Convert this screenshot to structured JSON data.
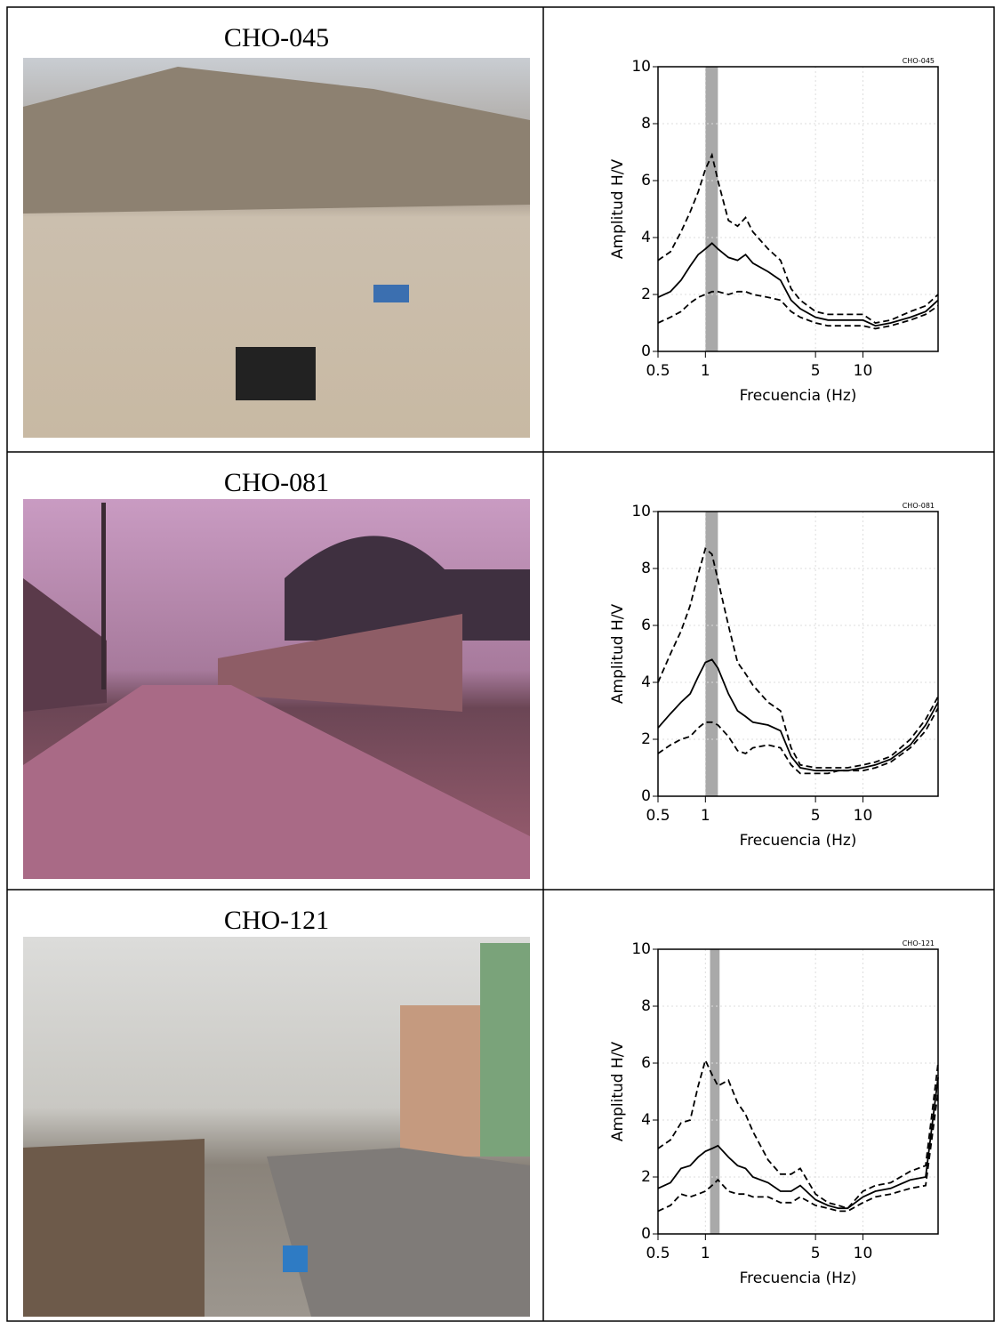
{
  "rows": [
    {
      "caption": "CHO-045"
    },
    {
      "caption": "CHO-081"
    },
    {
      "caption": "CHO-121"
    }
  ],
  "chart_data": [
    {
      "type": "line",
      "title": "CHO-045",
      "xlabel": "Frecuencia (Hz)",
      "ylabel": "Amplitud H/V",
      "xscale": "log",
      "xlim": [
        0.5,
        30
      ],
      "xticks": [
        0.5,
        1,
        5,
        10
      ],
      "ylim": [
        0,
        10
      ],
      "yticks": [
        0,
        2,
        4,
        6,
        8,
        10
      ],
      "grid": true,
      "highlight": [
        1.0,
        1.2
      ],
      "highlight_color": "#a9a9a9",
      "x": [
        0.5,
        0.6,
        0.7,
        0.8,
        0.9,
        1.0,
        1.1,
        1.2,
        1.4,
        1.6,
        1.8,
        2,
        2.5,
        3,
        3.5,
        4,
        5,
        6,
        7,
        8,
        10,
        12,
        15,
        20,
        25,
        30
      ],
      "series": [
        {
          "color": "#000000",
          "style": "solid",
          "values": [
            1.9,
            2.1,
            2.5,
            3.0,
            3.4,
            3.6,
            3.8,
            3.6,
            3.3,
            3.2,
            3.4,
            3.1,
            2.8,
            2.5,
            1.8,
            1.5,
            1.2,
            1.1,
            1.1,
            1.1,
            1.1,
            0.9,
            1.0,
            1.2,
            1.4,
            1.8
          ]
        },
        {
          "color": "#000000",
          "style": "dashed",
          "values": [
            3.2,
            3.5,
            4.2,
            4.9,
            5.6,
            6.4,
            6.9,
            6.0,
            4.6,
            4.4,
            4.7,
            4.2,
            3.6,
            3.2,
            2.2,
            1.8,
            1.4,
            1.3,
            1.3,
            1.3,
            1.3,
            1.0,
            1.1,
            1.4,
            1.6,
            2.0
          ]
        },
        {
          "color": "#000000",
          "style": "dashed",
          "values": [
            1.0,
            1.2,
            1.4,
            1.7,
            1.9,
            2.0,
            2.1,
            2.1,
            2.0,
            2.1,
            2.1,
            2.0,
            1.9,
            1.8,
            1.4,
            1.2,
            1.0,
            0.9,
            0.9,
            0.9,
            0.9,
            0.8,
            0.9,
            1.1,
            1.3,
            1.6
          ]
        }
      ]
    },
    {
      "type": "line",
      "title": "CHO-081",
      "xlabel": "Frecuencia (Hz)",
      "ylabel": "Amplitud H/V",
      "xscale": "log",
      "xlim": [
        0.5,
        30
      ],
      "xticks": [
        0.5,
        1,
        5,
        10
      ],
      "ylim": [
        0,
        10
      ],
      "yticks": [
        0,
        2,
        4,
        6,
        8,
        10
      ],
      "grid": true,
      "highlight": [
        1.0,
        1.2
      ],
      "highlight_color": "#a9a9a9",
      "x": [
        0.5,
        0.6,
        0.7,
        0.8,
        0.9,
        1.0,
        1.1,
        1.2,
        1.4,
        1.6,
        1.8,
        2,
        2.5,
        3,
        3.5,
        4,
        5,
        6,
        7,
        8,
        10,
        12,
        15,
        20,
        25,
        30
      ],
      "series": [
        {
          "color": "#000000",
          "style": "solid",
          "values": [
            2.4,
            2.9,
            3.3,
            3.6,
            4.2,
            4.7,
            4.8,
            4.5,
            3.6,
            3.0,
            2.8,
            2.6,
            2.5,
            2.3,
            1.4,
            1.0,
            0.9,
            0.9,
            0.9,
            0.9,
            1.0,
            1.1,
            1.3,
            1.8,
            2.5,
            3.3
          ]
        },
        {
          "color": "#000000",
          "style": "dashed",
          "values": [
            4.0,
            5.0,
            5.8,
            6.7,
            7.8,
            8.7,
            8.5,
            7.6,
            6.0,
            4.7,
            4.3,
            3.9,
            3.3,
            3.0,
            1.7,
            1.1,
            1.0,
            1.0,
            1.0,
            1.0,
            1.1,
            1.2,
            1.4,
            2.0,
            2.7,
            3.5
          ]
        },
        {
          "color": "#000000",
          "style": "dashed",
          "values": [
            1.5,
            1.8,
            2.0,
            2.1,
            2.4,
            2.6,
            2.6,
            2.5,
            2.1,
            1.6,
            1.5,
            1.7,
            1.8,
            1.7,
            1.1,
            0.8,
            0.8,
            0.8,
            0.9,
            0.9,
            0.9,
            1.0,
            1.2,
            1.7,
            2.3,
            3.1
          ]
        }
      ]
    },
    {
      "type": "line",
      "title": "CHO-121",
      "xlabel": "Frecuencia (Hz)",
      "ylabel": "Amplitud H/V",
      "xscale": "log",
      "xlim": [
        0.5,
        30
      ],
      "xticks": [
        0.5,
        1,
        5,
        10
      ],
      "ylim": [
        0,
        10
      ],
      "yticks": [
        0,
        2,
        4,
        6,
        8,
        10
      ],
      "grid": true,
      "highlight": [
        1.07,
        1.23
      ],
      "highlight_color": "#a9a9a9",
      "x": [
        0.5,
        0.6,
        0.7,
        0.8,
        0.9,
        1.0,
        1.1,
        1.2,
        1.4,
        1.6,
        1.8,
        2,
        2.5,
        3,
        3.5,
        4,
        5,
        6,
        7,
        8,
        10,
        12,
        15,
        20,
        25,
        30
      ],
      "series": [
        {
          "color": "#000000",
          "style": "solid",
          "values": [
            1.6,
            1.8,
            2.3,
            2.4,
            2.7,
            2.9,
            3.0,
            3.1,
            2.7,
            2.4,
            2.3,
            2.0,
            1.8,
            1.5,
            1.5,
            1.7,
            1.2,
            1.0,
            0.9,
            0.9,
            1.3,
            1.5,
            1.6,
            1.9,
            2.0,
            5.5
          ]
        },
        {
          "color": "#000000",
          "style": "dashed",
          "values": [
            3.0,
            3.3,
            3.9,
            4.0,
            5.2,
            6.1,
            5.6,
            5.2,
            5.4,
            4.6,
            4.2,
            3.6,
            2.6,
            2.1,
            2.1,
            2.3,
            1.4,
            1.1,
            1.0,
            0.9,
            1.5,
            1.7,
            1.8,
            2.2,
            2.4,
            6.0
          ]
        },
        {
          "color": "#000000",
          "style": "dashed",
          "values": [
            0.8,
            1.0,
            1.4,
            1.3,
            1.4,
            1.5,
            1.7,
            1.9,
            1.5,
            1.4,
            1.4,
            1.3,
            1.3,
            1.1,
            1.1,
            1.3,
            1.0,
            0.9,
            0.8,
            0.8,
            1.1,
            1.3,
            1.4,
            1.6,
            1.7,
            5.0
          ]
        }
      ]
    }
  ]
}
